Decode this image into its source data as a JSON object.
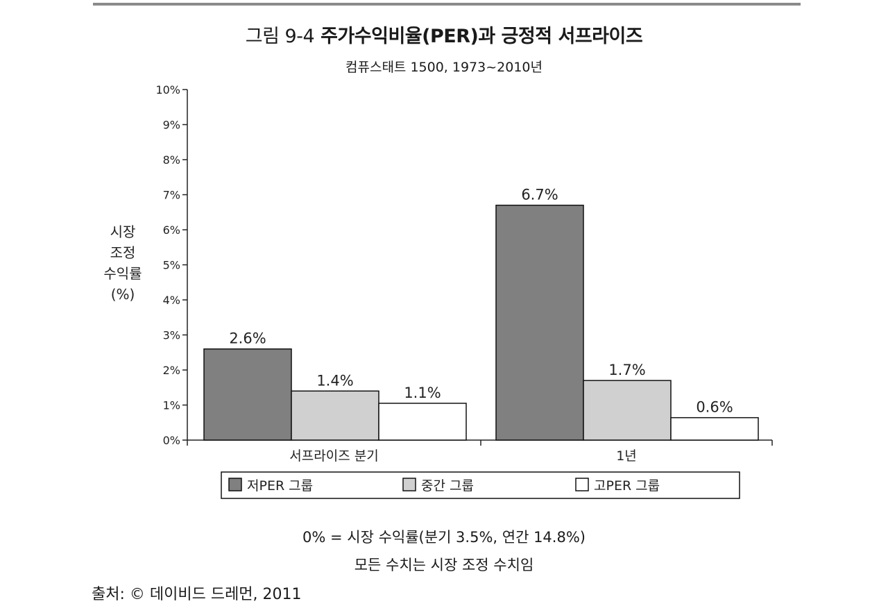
{
  "figure": {
    "number": "그림 9-4",
    "title": "주가수익비율(PER)과 긍정적 서프라이즈",
    "subtitle": "컴퓨스태트 1500, 1973~2010년"
  },
  "chart_data": {
    "type": "bar",
    "ylabel_lines": [
      "시장",
      "조정",
      "수익률",
      "(%)"
    ],
    "ylim": [
      0,
      10
    ],
    "yticks": [
      "0%",
      "1%",
      "2%",
      "3%",
      "4%",
      "5%",
      "6%",
      "7%",
      "8%",
      "9%",
      "10%"
    ],
    "categories": [
      "서프라이즈 분기",
      "1년"
    ],
    "series": [
      {
        "name": "저PER 그룹",
        "values": [
          2.6,
          6.7
        ],
        "labels": [
          "2.6%",
          "6.7%"
        ],
        "color": "#808080"
      },
      {
        "name": "중간 그룹",
        "values": [
          1.4,
          1.7
        ],
        "labels": [
          "1.4%",
          "1.7%"
        ],
        "color": "#d0d0d0"
      },
      {
        "name": "고PER 그룹",
        "values": [
          1.05,
          0.64
        ],
        "labels": [
          "1.1%",
          "0.6%"
        ],
        "color": "#ffffff"
      }
    ],
    "legend_position": "bottom",
    "grid": false
  },
  "notes": [
    "0% = 시장 수익률(분기 3.5%, 연간 14.8%)",
    "모든 수치는 시장 조정 수치임"
  ],
  "source": "출처: © 데이비드 드레먼, 2011"
}
